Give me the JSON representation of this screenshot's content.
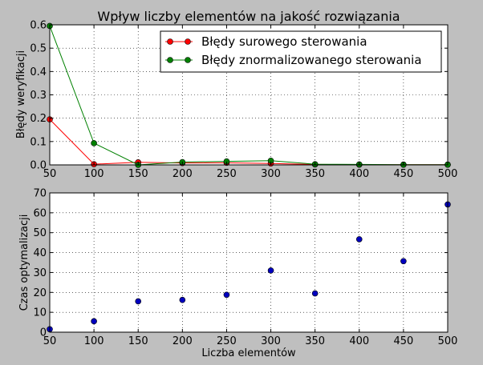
{
  "chart_data": [
    {
      "type": "line",
      "title": "Wpływ liczby elementów na jakość rozwiązania",
      "xlabel": "",
      "ylabel": "Błędy weryfikacji",
      "xlim": [
        50,
        500
      ],
      "ylim": [
        0,
        0.6
      ],
      "x_ticks": [
        50,
        100,
        150,
        200,
        250,
        300,
        350,
        400,
        450,
        500
      ],
      "y_ticks": [
        0.0,
        0.1,
        0.2,
        0.3,
        0.4,
        0.5,
        0.6
      ],
      "grid": true,
      "legend_position": "top-right",
      "x": [
        50,
        100,
        150,
        200,
        250,
        300,
        350,
        400,
        450,
        500
      ],
      "series": [
        {
          "name": "Błędy surowego sterowania",
          "color": "#ff0000",
          "marker_color": "#ff0000",
          "values": [
            0.195,
            0.003,
            0.011,
            0.008,
            0.009,
            0.006,
            0.002,
            0.001,
            0.001,
            0.001
          ]
        },
        {
          "name": "Błędy znormalizowanego sterowania",
          "color": "#008000",
          "marker_color": "#008000",
          "values": [
            0.595,
            0.093,
            0.0,
            0.012,
            0.015,
            0.018,
            0.003,
            0.002,
            0.001,
            0.001
          ]
        }
      ]
    },
    {
      "type": "scatter",
      "title": "",
      "xlabel": "Liczba elementów",
      "ylabel": "Czas optymalizacji",
      "xlim": [
        50,
        500
      ],
      "ylim": [
        0,
        70
      ],
      "x_ticks": [
        50,
        100,
        150,
        200,
        250,
        300,
        350,
        400,
        450,
        500
      ],
      "y_ticks": [
        0,
        10,
        20,
        30,
        40,
        50,
        60,
        70
      ],
      "grid": true,
      "series": [
        {
          "name": "",
          "color": "#0000bf",
          "x": [
            50,
            100,
            150,
            200,
            250,
            300,
            350,
            400,
            450,
            500
          ],
          "values": [
            1.5,
            5.5,
            15.5,
            16.2,
            18.8,
            31.0,
            19.5,
            46.7,
            35.7,
            64.2
          ]
        }
      ]
    }
  ]
}
